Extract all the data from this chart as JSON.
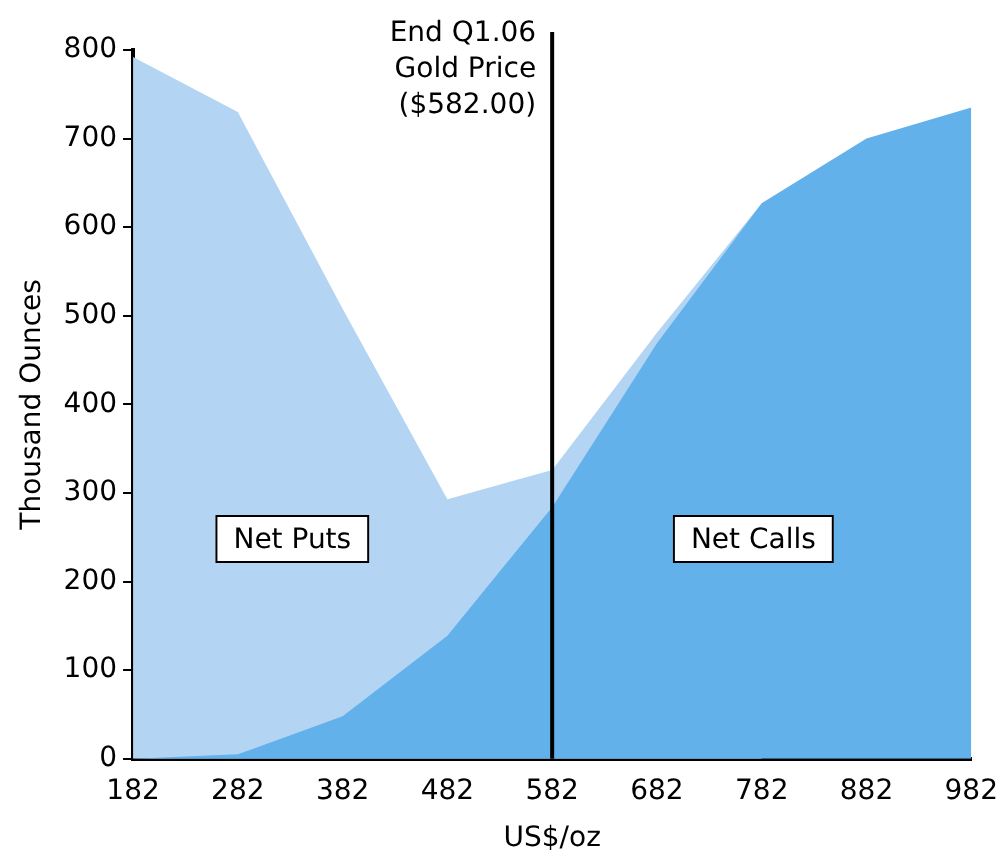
{
  "chart_data": {
    "type": "area",
    "xlabel": "US$/oz",
    "ylabel": "Thousand Ounces",
    "x": [
      182,
      282,
      382,
      482,
      582,
      682,
      782,
      882,
      982
    ],
    "series": [
      {
        "color": "#b3d5f3",
        "values": [
          792,
          730,
          508,
          293,
          326,
          481,
          627,
          null,
          null
        ]
      },
      {
        "color": "#63b1ea",
        "values": [
          0,
          5,
          48,
          139,
          284,
          469,
          627,
          700,
          735
        ]
      }
    ],
    "xlim": [
      182,
      982
    ],
    "xticks": [
      182,
      282,
      382,
      482,
      582,
      682,
      782,
      882,
      982
    ],
    "ylim": [
      0,
      800
    ],
    "yticks": [
      0,
      100,
      200,
      300,
      400,
      500,
      600,
      700,
      800
    ],
    "grid": false,
    "legend": false,
    "ref_lines": [
      {
        "axis": "x",
        "value": 582,
        "label": "End Q1.06\nGold Price\n($582.00)",
        "color": "#000000"
      }
    ],
    "annotations": [
      "Net Puts",
      "Net Calls"
    ]
  }
}
